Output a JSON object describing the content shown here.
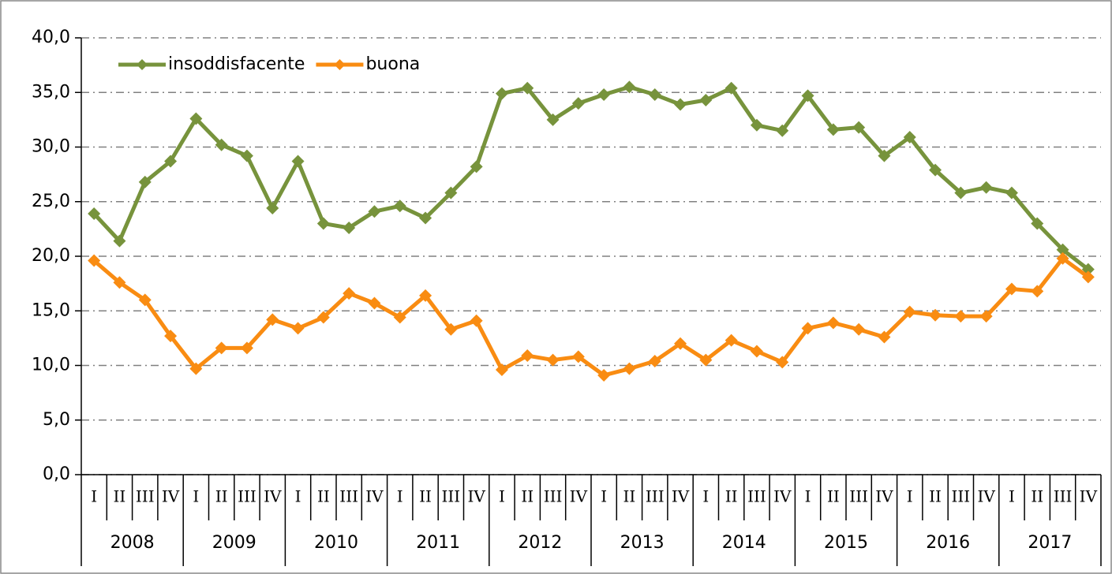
{
  "chart_data": {
    "type": "line",
    "categories": [
      "I",
      "II",
      "III",
      "IV",
      "I",
      "II",
      "III",
      "IV",
      "I",
      "II",
      "III",
      "IV",
      "I",
      "II",
      "III",
      "IV",
      "I",
      "II",
      "III",
      "IV",
      "I",
      "II",
      "III",
      "IV",
      "I",
      "II",
      "III",
      "IV",
      "I",
      "II",
      "III",
      "IV",
      "I",
      "II",
      "III",
      "IV",
      "I",
      "II",
      "III",
      "IV"
    ],
    "years": [
      "2008",
      "2009",
      "2010",
      "2011",
      "2012",
      "2013",
      "2014",
      "2015",
      "2016",
      "2017"
    ],
    "series": [
      {
        "name": "insoddisfacente",
        "color": "#77933c",
        "values": [
          23.9,
          21.4,
          26.8,
          28.7,
          32.6,
          30.2,
          29.2,
          24.4,
          28.7,
          23.0,
          22.6,
          24.1,
          24.6,
          23.5,
          25.8,
          28.2,
          34.9,
          35.4,
          32.5,
          34.0,
          34.8,
          35.5,
          34.8,
          33.9,
          34.3,
          35.4,
          32.0,
          31.5,
          34.7,
          31.6,
          31.8,
          29.2,
          30.9,
          27.9,
          25.8,
          26.3,
          25.8,
          23.0,
          20.6,
          18.8
        ]
      },
      {
        "name": "buona",
        "color": "#f98c12",
        "values": [
          19.6,
          17.6,
          16.0,
          12.7,
          9.7,
          11.6,
          11.6,
          14.2,
          13.4,
          14.4,
          16.6,
          15.7,
          14.4,
          16.4,
          13.3,
          14.1,
          9.6,
          10.9,
          10.5,
          10.8,
          9.1,
          9.7,
          10.4,
          12.0,
          10.5,
          12.3,
          11.3,
          10.3,
          13.4,
          13.9,
          13.3,
          12.6,
          14.9,
          14.6,
          14.5,
          14.5,
          17.0,
          16.8,
          19.8,
          18.1
        ]
      }
    ],
    "ylim": [
      0,
      40
    ],
    "yticks": [
      {
        "value": 0,
        "label": "0,0"
      },
      {
        "value": 5,
        "label": "5,0"
      },
      {
        "value": 10,
        "label": "10,0"
      },
      {
        "value": 15,
        "label": "15,0"
      },
      {
        "value": 20,
        "label": "20,0"
      },
      {
        "value": 25,
        "label": "25,0"
      },
      {
        "value": 30,
        "label": "30,0"
      },
      {
        "value": 35,
        "label": "35,0"
      },
      {
        "value": 40,
        "label": "40,0"
      }
    ],
    "grid": true,
    "legend": "top-left"
  }
}
